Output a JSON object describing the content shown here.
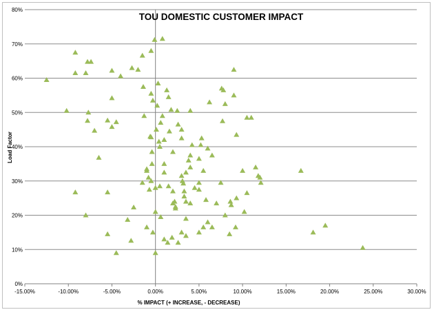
{
  "chart_data": {
    "type": "scatter",
    "title": "TOU DOMESTIC CUSTOMER IMPACT",
    "xlabel": "% IMPACT (+ INCREASE, - DECREASE)",
    "ylabel": "Load Factor",
    "xlim": [
      -15,
      30
    ],
    "ylim": [
      0,
      80
    ],
    "x_ticks": [
      "-15.00%",
      "-10.00%",
      "-5.00%",
      "0.00%",
      "5.00%",
      "10.00%",
      "15.00%",
      "20.00%",
      "25.00%",
      "30.00%"
    ],
    "y_ticks": [
      "0%",
      "10%",
      "20%",
      "30%",
      "40%",
      "50%",
      "60%",
      "70%",
      "80%"
    ],
    "grid": "horizontal",
    "legend": "none",
    "marker": "triangle",
    "color": "#9bbb59",
    "series": [
      {
        "points": [
          [
            -12.5,
            59.5
          ],
          [
            -10.2,
            50.5
          ],
          [
            -9.2,
            67.5
          ],
          [
            -9.2,
            61.5
          ],
          [
            -9.2,
            26.7
          ],
          [
            -8.0,
            61.5
          ],
          [
            -7.8,
            64.8
          ],
          [
            -7.4,
            64.8
          ],
          [
            -7.7,
            50.0
          ],
          [
            -7.8,
            47.6
          ],
          [
            -7.0,
            44.7
          ],
          [
            -6.5,
            36.8
          ],
          [
            -8.0,
            20.0
          ],
          [
            -5.5,
            47.7
          ],
          [
            -5.0,
            45.8
          ],
          [
            -5.0,
            62.2
          ],
          [
            -5.0,
            54.2
          ],
          [
            -4.5,
            47.2
          ],
          [
            -5.5,
            26.7
          ],
          [
            -5.5,
            14.5
          ],
          [
            -4.5,
            9.0
          ],
          [
            -4.0,
            60.6
          ],
          [
            -3.2,
            18.7
          ],
          [
            -2.8,
            12.6
          ],
          [
            -2.5,
            22.3
          ],
          [
            -2.7,
            63.0
          ],
          [
            -2.0,
            62.5
          ],
          [
            -1.5,
            29.5
          ],
          [
            -1.4,
            57.5
          ],
          [
            -1.3,
            49.0
          ],
          [
            -1.5,
            66.6
          ],
          [
            -1.0,
            33.5
          ],
          [
            -0.5,
            42.8
          ],
          [
            -0.6,
            43.0
          ],
          [
            -0.4,
            38.5
          ],
          [
            -0.5,
            55.5
          ],
          [
            -0.7,
            27.5
          ],
          [
            -1.0,
            33.0
          ],
          [
            -0.8,
            31.0
          ],
          [
            -1.0,
            16.5
          ],
          [
            -0.5,
            30.0
          ],
          [
            -0.4,
            35.0
          ],
          [
            -0.5,
            68.0
          ],
          [
            -0.1,
            71.2
          ],
          [
            -0.3,
            15.0
          ],
          [
            0.0,
            21.0
          ],
          [
            0.1,
            45.0
          ],
          [
            -0.3,
            53.5
          ],
          [
            0.0,
            28.0
          ],
          [
            0.3,
            58.5
          ],
          [
            0.2,
            52.0
          ],
          [
            0.4,
            41.5
          ],
          [
            0.5,
            40.0
          ],
          [
            0.5,
            28.5
          ],
          [
            0.6,
            19.5
          ],
          [
            0.8,
            49.0
          ],
          [
            0.0,
            9.0
          ],
          [
            0.6,
            47.0
          ],
          [
            0.8,
            71.5
          ],
          [
            1.0,
            42.0
          ],
          [
            1.0,
            32.5
          ],
          [
            1.3,
            56.5
          ],
          [
            1.5,
            54.5
          ],
          [
            1.6,
            44.5
          ],
          [
            1.8,
            50.8
          ],
          [
            2.0,
            38.5
          ],
          [
            1.0,
            35.0
          ],
          [
            1.5,
            28.5
          ],
          [
            2.0,
            27.0
          ],
          [
            2.3,
            22.5
          ],
          [
            2.3,
            22.0
          ],
          [
            1.0,
            13.0
          ],
          [
            1.4,
            12.0
          ],
          [
            1.9,
            13.5
          ],
          [
            2.6,
            12.0
          ],
          [
            2.5,
            50.5
          ],
          [
            2.6,
            46.5
          ],
          [
            3.0,
            45.0
          ],
          [
            3.0,
            42.5
          ],
          [
            3.0,
            31.5
          ],
          [
            3.1,
            30.0
          ],
          [
            3.2,
            29.3
          ],
          [
            3.3,
            25.5
          ],
          [
            3.3,
            27.0
          ],
          [
            3.5,
            24.0
          ],
          [
            3.5,
            19.0
          ],
          [
            3.5,
            32.5
          ],
          [
            3.8,
            36.0
          ],
          [
            4.0,
            37.5
          ],
          [
            4.2,
            40.5
          ],
          [
            4.0,
            23.5
          ],
          [
            4.0,
            34.0
          ],
          [
            4.0,
            50.5
          ],
          [
            3.0,
            15.0
          ],
          [
            3.5,
            14.0
          ],
          [
            2.0,
            23.5
          ],
          [
            2.2,
            24.0
          ],
          [
            4.5,
            28.0
          ],
          [
            5.0,
            29.5
          ],
          [
            5.0,
            27.5
          ],
          [
            5.0,
            36.5
          ],
          [
            5.2,
            40.5
          ],
          [
            5.3,
            42.5
          ],
          [
            5.5,
            33.0
          ],
          [
            5.8,
            24.5
          ],
          [
            6.0,
            18.0
          ],
          [
            5.5,
            16.5
          ],
          [
            6.0,
            39.5
          ],
          [
            6.2,
            53.0
          ],
          [
            6.5,
            37.5
          ],
          [
            6.5,
            16.5
          ],
          [
            5.0,
            15.0
          ],
          [
            7.0,
            23.5
          ],
          [
            7.5,
            29.5
          ],
          [
            7.6,
            57.0
          ],
          [
            7.7,
            47.5
          ],
          [
            7.8,
            56.5
          ],
          [
            8.0,
            52.5
          ],
          [
            8.0,
            20.0
          ],
          [
            8.5,
            14.5
          ],
          [
            8.7,
            23.0
          ],
          [
            8.6,
            24.0
          ],
          [
            9.0,
            55.0
          ],
          [
            9.0,
            62.5
          ],
          [
            9.3,
            43.5
          ],
          [
            9.2,
            16.5
          ],
          [
            9.3,
            25.0
          ],
          [
            10.0,
            33.0
          ],
          [
            10.2,
            21.0
          ],
          [
            10.5,
            48.5
          ],
          [
            10.5,
            26.5
          ],
          [
            11.0,
            48.5
          ],
          [
            11.5,
            34.0
          ],
          [
            11.8,
            31.5
          ],
          [
            12.0,
            31.0
          ],
          [
            12.1,
            29.5
          ],
          [
            16.7,
            33.0
          ],
          [
            18.1,
            15.0
          ],
          [
            19.5,
            17.0
          ],
          [
            23.8,
            10.5
          ]
        ]
      }
    ]
  }
}
